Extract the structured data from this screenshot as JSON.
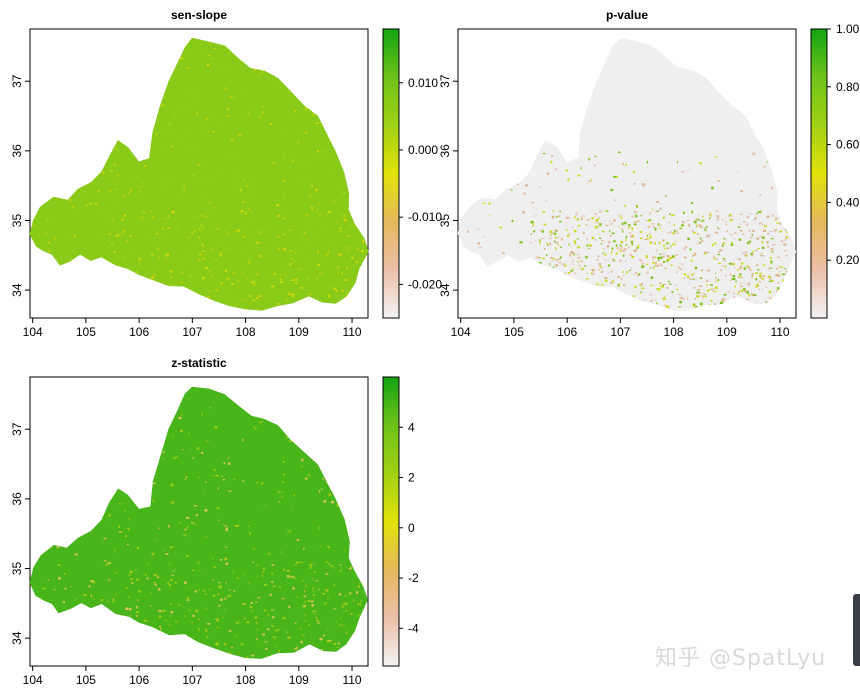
{
  "chart_data": [
    {
      "type": "heatmap",
      "title": "sen-slope",
      "x_ticks": [
        "104",
        "105",
        "106",
        "107",
        "108",
        "109",
        "110"
      ],
      "y_ticks": [
        "34",
        "35",
        "36",
        "37"
      ],
      "xlim": [
        103.95,
        110.3
      ],
      "ylim": [
        33.6,
        37.75
      ],
      "colorbar": {
        "range": [
          -0.025,
          0.018
        ],
        "ticks": [
          -0.02,
          -0.01,
          0.0,
          0.01
        ],
        "tick_labels": [
          "-0.020",
          "-0.010",
          "0.000",
          "0.010"
        ],
        "colors": [
          "#f3f3f3",
          "#ecbfa8",
          "#e4b85d",
          "#e2e20a",
          "#a0d114",
          "#6fc31a",
          "#12a312"
        ]
      },
      "fill_color": "#8acb1a",
      "speckle_colors": [
        "#b9d40c",
        "#d7da0a",
        "#9ccd14"
      ]
    },
    {
      "type": "heatmap",
      "title": "p-value",
      "x_ticks": [
        "104",
        "105",
        "106",
        "107",
        "108",
        "109",
        "110"
      ],
      "y_ticks": [
        "34",
        "35",
        "36",
        "37"
      ],
      "xlim": [
        103.95,
        110.3
      ],
      "ylim": [
        33.6,
        37.75
      ],
      "colorbar": {
        "range": [
          0.0,
          1.0
        ],
        "ticks": [
          0.2,
          0.4,
          0.6,
          0.8,
          1.0
        ],
        "tick_labels": [
          "0.20",
          "0.40",
          "0.60",
          "0.80",
          "1.00"
        ],
        "colors": [
          "#f3f3f3",
          "#ecbfa8",
          "#e4b85d",
          "#e2e20a",
          "#a0d114",
          "#6fc31a",
          "#12a312"
        ]
      },
      "fill_color": "#efefef",
      "speckle_colors": [
        "#e8c3b3",
        "#7cc41a",
        "#c9d712",
        "#e0b38a"
      ]
    },
    {
      "type": "heatmap",
      "title": "z-statistic",
      "x_ticks": [
        "104",
        "105",
        "106",
        "107",
        "108",
        "109",
        "110"
      ],
      "y_ticks": [
        "34",
        "35",
        "36",
        "37"
      ],
      "xlim": [
        103.95,
        110.3
      ],
      "ylim": [
        33.6,
        37.75
      ],
      "colorbar": {
        "range": [
          -5.5,
          6.0
        ],
        "ticks": [
          -4,
          -2,
          0,
          2,
          4
        ],
        "tick_labels": [
          "-4",
          "-2",
          "0",
          "2",
          "4"
        ],
        "colors": [
          "#f3f3f3",
          "#ecbfa8",
          "#e4b85d",
          "#e2e20a",
          "#a0d114",
          "#6fc31a",
          "#12a312"
        ]
      },
      "fill_color": "#48b51a",
      "speckle_colors": [
        "#9fce14",
        "#d6c55a",
        "#7ec21a"
      ]
    }
  ],
  "watermark": "知乎 @SpatLyu"
}
